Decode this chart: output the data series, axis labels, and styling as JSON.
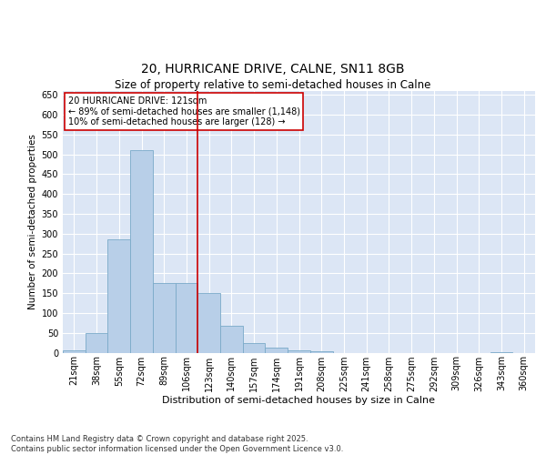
{
  "title1": "20, HURRICANE DRIVE, CALNE, SN11 8GB",
  "title2": "Size of property relative to semi-detached houses in Calne",
  "xlabel": "Distribution of semi-detached houses by size in Calne",
  "ylabel": "Number of semi-detached properties",
  "categories": [
    "21sqm",
    "38sqm",
    "55sqm",
    "72sqm",
    "89sqm",
    "106sqm",
    "123sqm",
    "140sqm",
    "157sqm",
    "174sqm",
    "191sqm",
    "208sqm",
    "225sqm",
    "241sqm",
    "258sqm",
    "275sqm",
    "292sqm",
    "309sqm",
    "326sqm",
    "343sqm",
    "360sqm"
  ],
  "values": [
    5,
    50,
    285,
    510,
    175,
    175,
    150,
    68,
    25,
    12,
    5,
    4,
    0,
    0,
    0,
    0,
    0,
    0,
    0,
    2,
    0
  ],
  "bar_color": "#b8cfe8",
  "bar_edge_color": "#7aaac8",
  "background_color": "#dce6f5",
  "grid_color": "#ffffff",
  "vline_color": "#cc0000",
  "annotation_line1": "20 HURRICANE DRIVE: 121sqm",
  "annotation_line2": "← 89% of semi-detached houses are smaller (1,148)",
  "annotation_line3": "10% of semi-detached houses are larger (128) →",
  "annotation_box_color": "#ffffff",
  "annotation_box_edge_color": "#cc0000",
  "ylim": [
    0,
    660
  ],
  "yticks": [
    0,
    50,
    100,
    150,
    200,
    250,
    300,
    350,
    400,
    450,
    500,
    550,
    600,
    650
  ],
  "footer_line1": "Contains HM Land Registry data © Crown copyright and database right 2025.",
  "footer_line2": "Contains public sector information licensed under the Open Government Licence v3.0.",
  "title1_fontsize": 10,
  "title2_fontsize": 8.5,
  "axis_fontsize": 7.5,
  "ylabel_fontsize": 7.5,
  "xlabel_fontsize": 8,
  "annotation_fontsize": 7,
  "footer_fontsize": 6,
  "tick_fontsize": 7,
  "ytick_fontsize": 7
}
